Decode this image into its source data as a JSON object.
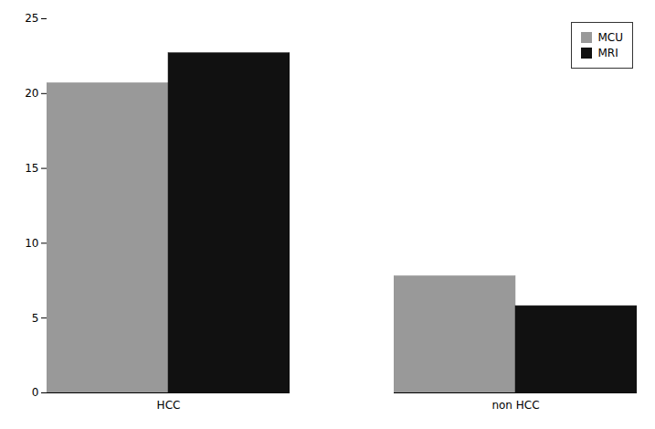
{
  "chart_data": {
    "type": "bar",
    "categories": [
      "HCC",
      "non HCC"
    ],
    "series": [
      {
        "name": "MCU",
        "color": "#999999",
        "values": [
          20.7,
          7.8
        ]
      },
      {
        "name": "MRI",
        "color": "#111111",
        "values": [
          22.7,
          5.8
        ]
      }
    ],
    "ylim": [
      0,
      25
    ],
    "yticks": [
      0,
      5,
      10,
      15,
      20,
      25
    ],
    "grid": false,
    "legend": "upper right"
  }
}
